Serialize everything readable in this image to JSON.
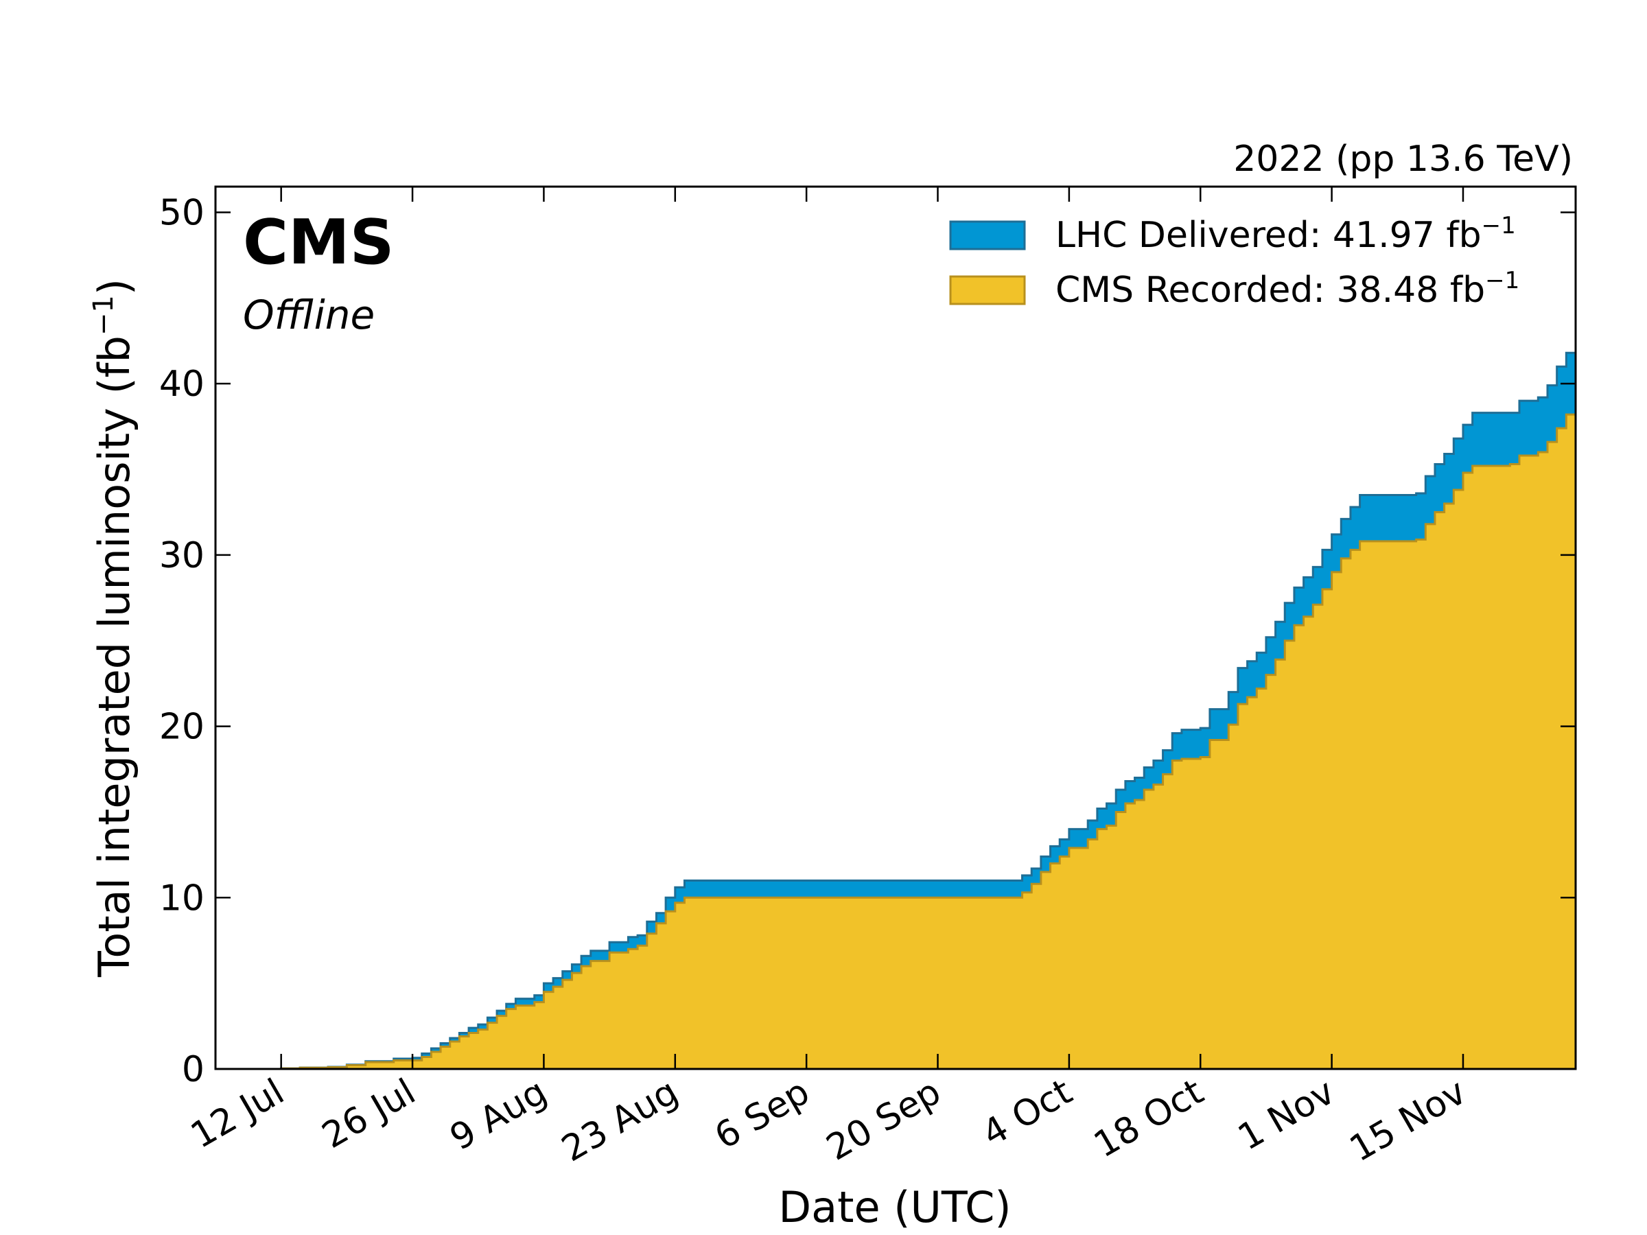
{
  "chart_data": {
    "type": "area",
    "top_right_label": "2022 (pp 13.6 TeV)",
    "experiment_label": "CMS",
    "status_label": "Offline",
    "xlabel": "Date (UTC)",
    "ylabel_main": "Total integrated luminosity (fb",
    "ylabel_sup": "−1",
    "ylabel_close": ")",
    "xlim": [
      "2022-07-05",
      "2022-11-27"
    ],
    "ylim": [
      0,
      51.5
    ],
    "yticks": [
      0,
      10,
      20,
      30,
      40,
      50
    ],
    "xticks": [
      {
        "date": "2022-07-12",
        "label": "12 Jul"
      },
      {
        "date": "2022-07-26",
        "label": "26 Jul"
      },
      {
        "date": "2022-08-09",
        "label": "9 Aug"
      },
      {
        "date": "2022-08-23",
        "label": "23 Aug"
      },
      {
        "date": "2022-09-06",
        "label": "6 Sep"
      },
      {
        "date": "2022-09-20",
        "label": "20 Sep"
      },
      {
        "date": "2022-10-04",
        "label": "4 Oct"
      },
      {
        "date": "2022-10-18",
        "label": "18 Oct"
      },
      {
        "date": "2022-11-01",
        "label": "1 Nov"
      },
      {
        "date": "2022-11-15",
        "label": "15 Nov"
      }
    ],
    "legend_position": "top-right",
    "series": [
      {
        "name": "LHC Delivered",
        "legend_value": "41.97",
        "legend_unit": "fb",
        "legend_sup": "−1",
        "color": "#0196d3",
        "edge_color": "#1e6e96",
        "points": [
          [
            "2022-07-05",
            0
          ],
          [
            "2022-07-12",
            0.03
          ],
          [
            "2022-07-14",
            0.08
          ],
          [
            "2022-07-17",
            0.12
          ],
          [
            "2022-07-19",
            0.25
          ],
          [
            "2022-07-21",
            0.45
          ],
          [
            "2022-07-24",
            0.6
          ],
          [
            "2022-07-26",
            0.65
          ],
          [
            "2022-07-27",
            0.9
          ],
          [
            "2022-07-28",
            1.2
          ],
          [
            "2022-07-29",
            1.5
          ],
          [
            "2022-07-30",
            1.8
          ],
          [
            "2022-07-31",
            2.1
          ],
          [
            "2022-08-01",
            2.4
          ],
          [
            "2022-08-02",
            2.6
          ],
          [
            "2022-08-03",
            3.0
          ],
          [
            "2022-08-04",
            3.4
          ],
          [
            "2022-08-05",
            3.8
          ],
          [
            "2022-08-06",
            4.1
          ],
          [
            "2022-08-08",
            4.3
          ],
          [
            "2022-08-09",
            5.0
          ],
          [
            "2022-08-10",
            5.3
          ],
          [
            "2022-08-11",
            5.7
          ],
          [
            "2022-08-12",
            6.1
          ],
          [
            "2022-08-13",
            6.6
          ],
          [
            "2022-08-14",
            6.9
          ],
          [
            "2022-08-16",
            7.4
          ],
          [
            "2022-08-18",
            7.7
          ],
          [
            "2022-08-19",
            7.8
          ],
          [
            "2022-08-20",
            8.6
          ],
          [
            "2022-08-21",
            9.1
          ],
          [
            "2022-08-22",
            10.0
          ],
          [
            "2022-08-23",
            10.6
          ],
          [
            "2022-08-24",
            11.0
          ],
          [
            "2022-09-28",
            11.0
          ],
          [
            "2022-09-29",
            11.3
          ],
          [
            "2022-09-30",
            11.7
          ],
          [
            "2022-10-01",
            12.4
          ],
          [
            "2022-10-02",
            13.0
          ],
          [
            "2022-10-03",
            13.4
          ],
          [
            "2022-10-04",
            14.0
          ],
          [
            "2022-10-06",
            14.5
          ],
          [
            "2022-10-07",
            15.2
          ],
          [
            "2022-10-08",
            15.5
          ],
          [
            "2022-10-09",
            16.3
          ],
          [
            "2022-10-10",
            16.8
          ],
          [
            "2022-10-11",
            17.0
          ],
          [
            "2022-10-12",
            17.6
          ],
          [
            "2022-10-13",
            18.0
          ],
          [
            "2022-10-14",
            18.6
          ],
          [
            "2022-10-15",
            19.6
          ],
          [
            "2022-10-16",
            19.8
          ],
          [
            "2022-10-18",
            19.9
          ],
          [
            "2022-10-19",
            21.0
          ],
          [
            "2022-10-21",
            22.0
          ],
          [
            "2022-10-22",
            23.4
          ],
          [
            "2022-10-23",
            23.8
          ],
          [
            "2022-10-24",
            24.3
          ],
          [
            "2022-10-25",
            25.2
          ],
          [
            "2022-10-26",
            26.1
          ],
          [
            "2022-10-27",
            27.2
          ],
          [
            "2022-10-28",
            28.1
          ],
          [
            "2022-10-29",
            28.7
          ],
          [
            "2022-10-30",
            29.3
          ],
          [
            "2022-10-31",
            30.3
          ],
          [
            "2022-11-01",
            31.2
          ],
          [
            "2022-11-02",
            32.1
          ],
          [
            "2022-11-03",
            32.8
          ],
          [
            "2022-11-04",
            33.5
          ],
          [
            "2022-11-10",
            33.6
          ],
          [
            "2022-11-11",
            34.6
          ],
          [
            "2022-11-12",
            35.3
          ],
          [
            "2022-11-13",
            35.9
          ],
          [
            "2022-11-14",
            36.8
          ],
          [
            "2022-11-15",
            37.6
          ],
          [
            "2022-11-16",
            38.3
          ],
          [
            "2022-11-20",
            38.3
          ],
          [
            "2022-11-21",
            39.0
          ],
          [
            "2022-11-23",
            39.2
          ],
          [
            "2022-11-24",
            39.9
          ],
          [
            "2022-11-25",
            41.0
          ],
          [
            "2022-11-26",
            41.8
          ],
          [
            "2022-11-27",
            41.97
          ]
        ]
      },
      {
        "name": "CMS Recorded",
        "legend_value": "38.48",
        "legend_unit": "fb",
        "legend_sup": "−1",
        "color": "#f1c229",
        "edge_color": "#b8901d",
        "points": [
          [
            "2022-07-05",
            0
          ],
          [
            "2022-07-12",
            0.03
          ],
          [
            "2022-07-14",
            0.07
          ],
          [
            "2022-07-17",
            0.1
          ],
          [
            "2022-07-19",
            0.22
          ],
          [
            "2022-07-21",
            0.4
          ],
          [
            "2022-07-24",
            0.5
          ],
          [
            "2022-07-26",
            0.5
          ],
          [
            "2022-07-27",
            0.7
          ],
          [
            "2022-07-28",
            1.0
          ],
          [
            "2022-07-29",
            1.3
          ],
          [
            "2022-07-30",
            1.6
          ],
          [
            "2022-07-31",
            1.9
          ],
          [
            "2022-08-01",
            2.1
          ],
          [
            "2022-08-02",
            2.3
          ],
          [
            "2022-08-03",
            2.7
          ],
          [
            "2022-08-04",
            3.1
          ],
          [
            "2022-08-05",
            3.5
          ],
          [
            "2022-08-06",
            3.7
          ],
          [
            "2022-08-08",
            3.9
          ],
          [
            "2022-08-09",
            4.5
          ],
          [
            "2022-08-10",
            4.8
          ],
          [
            "2022-08-11",
            5.2
          ],
          [
            "2022-08-12",
            5.6
          ],
          [
            "2022-08-13",
            6.0
          ],
          [
            "2022-08-14",
            6.3
          ],
          [
            "2022-08-16",
            6.8
          ],
          [
            "2022-08-18",
            7.0
          ],
          [
            "2022-08-19",
            7.2
          ],
          [
            "2022-08-20",
            7.9
          ],
          [
            "2022-08-21",
            8.5
          ],
          [
            "2022-08-22",
            9.2
          ],
          [
            "2022-08-23",
            9.7
          ],
          [
            "2022-08-24",
            10.0
          ],
          [
            "2022-09-28",
            10.0
          ],
          [
            "2022-09-29",
            10.3
          ],
          [
            "2022-09-30",
            10.8
          ],
          [
            "2022-10-01",
            11.5
          ],
          [
            "2022-10-02",
            12.0
          ],
          [
            "2022-10-03",
            12.4
          ],
          [
            "2022-10-04",
            12.9
          ],
          [
            "2022-10-06",
            13.4
          ],
          [
            "2022-10-07",
            14.0
          ],
          [
            "2022-10-08",
            14.2
          ],
          [
            "2022-10-09",
            15.0
          ],
          [
            "2022-10-10",
            15.5
          ],
          [
            "2022-10-11",
            15.7
          ],
          [
            "2022-10-12",
            16.3
          ],
          [
            "2022-10-13",
            16.6
          ],
          [
            "2022-10-14",
            17.2
          ],
          [
            "2022-10-15",
            18.0
          ],
          [
            "2022-10-16",
            18.1
          ],
          [
            "2022-10-18",
            18.2
          ],
          [
            "2022-10-19",
            19.2
          ],
          [
            "2022-10-21",
            20.1
          ],
          [
            "2022-10-22",
            21.3
          ],
          [
            "2022-10-23",
            21.7
          ],
          [
            "2022-10-24",
            22.2
          ],
          [
            "2022-10-25",
            23.0
          ],
          [
            "2022-10-26",
            23.9
          ],
          [
            "2022-10-27",
            25.0
          ],
          [
            "2022-10-28",
            25.9
          ],
          [
            "2022-10-29",
            26.4
          ],
          [
            "2022-10-30",
            27.1
          ],
          [
            "2022-10-31",
            28.0
          ],
          [
            "2022-11-01",
            29.0
          ],
          [
            "2022-11-02",
            29.8
          ],
          [
            "2022-11-03",
            30.3
          ],
          [
            "2022-11-04",
            30.8
          ],
          [
            "2022-11-10",
            30.9
          ],
          [
            "2022-11-11",
            31.8
          ],
          [
            "2022-11-12",
            32.5
          ],
          [
            "2022-11-13",
            33.0
          ],
          [
            "2022-11-14",
            33.8
          ],
          [
            "2022-11-15",
            34.8
          ],
          [
            "2022-11-16",
            35.2
          ],
          [
            "2022-11-20",
            35.3
          ],
          [
            "2022-11-21",
            35.8
          ],
          [
            "2022-11-23",
            36.0
          ],
          [
            "2022-11-24",
            36.6
          ],
          [
            "2022-11-25",
            37.4
          ],
          [
            "2022-11-26",
            38.2
          ],
          [
            "2022-11-27",
            38.48
          ]
        ]
      }
    ]
  }
}
